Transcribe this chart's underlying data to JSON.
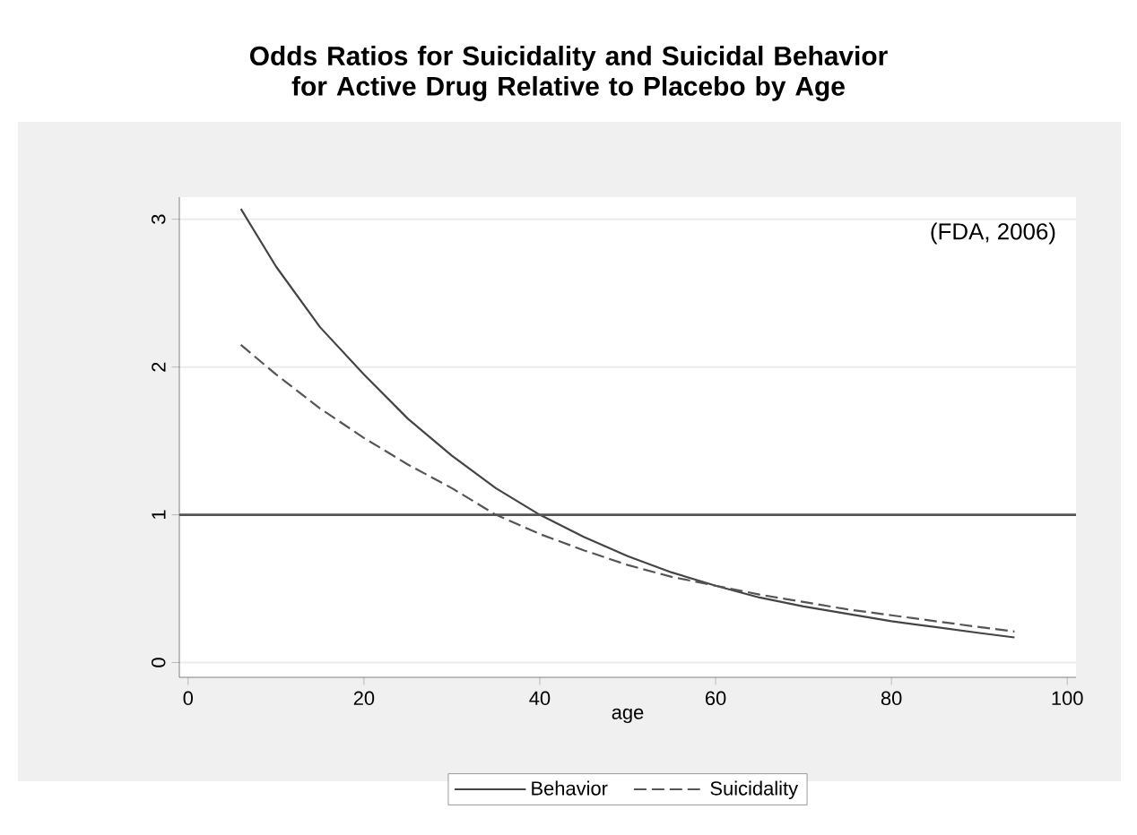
{
  "chart_data": {
    "type": "line",
    "title": "Odds Ratios for Suicidality and Suicidal Behavior for Active Drug Relative to Placebo by Age",
    "xlabel": "age",
    "annotations": [
      "(FDA, 2006)"
    ],
    "xlim": [
      -1,
      101
    ],
    "ylim": [
      -0.1,
      3.15
    ],
    "xticks": [
      0,
      20,
      40,
      60,
      80,
      100
    ],
    "yticks": [
      0,
      1,
      2,
      3
    ],
    "grid": "y",
    "legend": "bottom",
    "ref_lines": [
      {
        "axis": "y",
        "value": 1,
        "color": "#555555",
        "line_style": "solid"
      }
    ],
    "series": [
      {
        "name": "Behavior",
        "color": "#444444",
        "line_style": "solid",
        "x": [
          6,
          10,
          15,
          20,
          25,
          30,
          35,
          40,
          45,
          50,
          55,
          60,
          65,
          70,
          75,
          80,
          85,
          90,
          94
        ],
        "values": [
          3.07,
          2.68,
          2.27,
          1.95,
          1.65,
          1.4,
          1.18,
          1.0,
          0.85,
          0.72,
          0.61,
          0.52,
          0.44,
          0.38,
          0.33,
          0.28,
          0.24,
          0.2,
          0.17
        ]
      },
      {
        "name": "Suicidality",
        "color": "#555555",
        "line_style": "dashed",
        "x": [
          6,
          10,
          15,
          20,
          25,
          30,
          35,
          40,
          45,
          50,
          55,
          60,
          65,
          70,
          75,
          80,
          85,
          90,
          94
        ],
        "values": [
          2.15,
          1.95,
          1.72,
          1.52,
          1.34,
          1.18,
          1.0,
          0.87,
          0.76,
          0.66,
          0.58,
          0.52,
          0.46,
          0.41,
          0.36,
          0.32,
          0.28,
          0.24,
          0.21
        ]
      }
    ]
  }
}
